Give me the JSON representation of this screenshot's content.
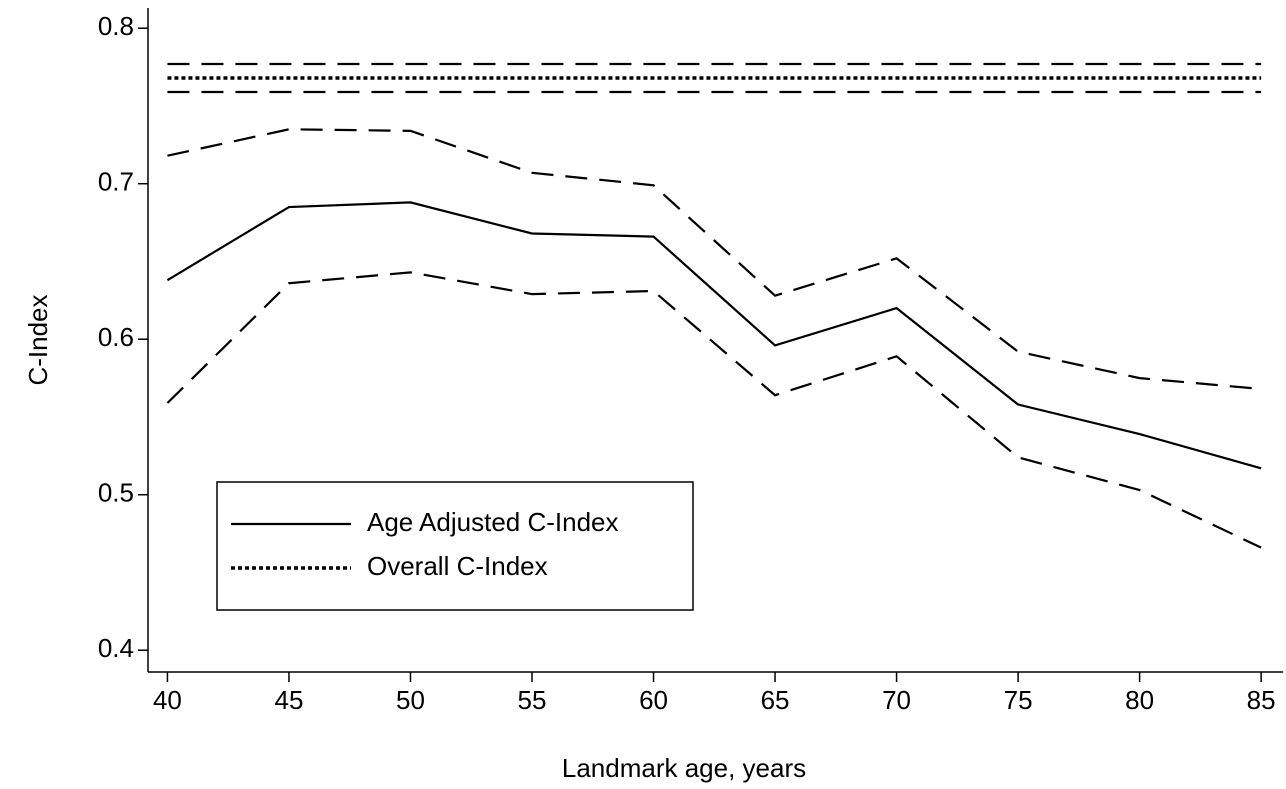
{
  "chart_data": {
    "type": "line",
    "xlabel": "Landmark age, years",
    "ylabel": "C-Index",
    "x": [
      40,
      45,
      50,
      55,
      60,
      65,
      70,
      75,
      80,
      85
    ],
    "series": [
      {
        "name": "Age Adjusted C-Index",
        "color": "#000000",
        "dash": "solid",
        "values": [
          0.638,
          0.685,
          0.688,
          0.668,
          0.666,
          0.596,
          0.62,
          0.558,
          0.539,
          0.517
        ]
      },
      {
        "color": "#000000",
        "dash": "dashed",
        "values": [
          0.718,
          0.735,
          0.734,
          0.707,
          0.699,
          0.628,
          0.652,
          0.592,
          0.575,
          0.568
        ]
      },
      {
        "color": "#000000",
        "dash": "dashed",
        "values": [
          0.559,
          0.636,
          0.643,
          0.629,
          0.631,
          0.564,
          0.589,
          0.524,
          0.503,
          0.466
        ]
      },
      {
        "name": "Overall C-Index",
        "color": "#000000",
        "dash": "dotted",
        "values": [
          0.768,
          0.768,
          0.768,
          0.768,
          0.768,
          0.768,
          0.768,
          0.768,
          0.768,
          0.768
        ]
      },
      {
        "color": "#000000",
        "dash": "dashed",
        "values": [
          0.777,
          0.777,
          0.777,
          0.777,
          0.777,
          0.777,
          0.777,
          0.777,
          0.777,
          0.777
        ]
      },
      {
        "color": "#000000",
        "dash": "dashed",
        "values": [
          0.759,
          0.759,
          0.759,
          0.759,
          0.759,
          0.759,
          0.759,
          0.759,
          0.759,
          0.759
        ]
      }
    ],
    "xlim": [
      39.2,
      85.9
    ],
    "ylim": [
      0.386,
      0.813
    ],
    "xticks": [
      40,
      45,
      50,
      55,
      60,
      65,
      70,
      75,
      80,
      85
    ],
    "yticks": [
      0.4,
      0.5,
      0.6,
      0.7,
      0.8
    ],
    "grid": false,
    "legend": "lower left"
  }
}
